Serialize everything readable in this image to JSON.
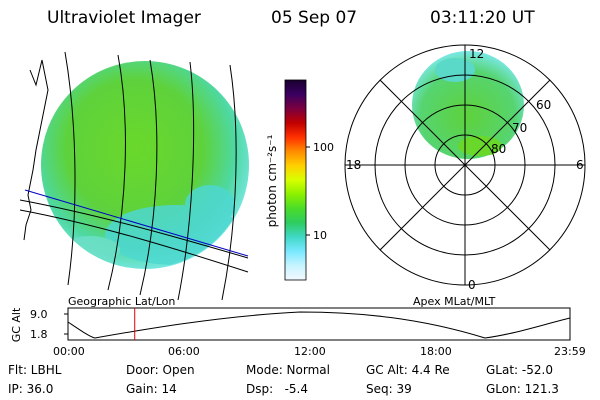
{
  "header": {
    "instrument": "Ultraviolet Imager",
    "date": "05 Sep 07",
    "time": "03:11:20 UT"
  },
  "colorbar": {
    "unit_label": "photon cm⁻²s⁻¹",
    "ticks": [
      "100",
      "10"
    ],
    "stops": [
      "#1a0030",
      "#3a0060",
      "#7a0040",
      "#c00000",
      "#ff3000",
      "#ff8c00",
      "#ffd000",
      "#d8ff00",
      "#8cf000",
      "#4adc2a",
      "#2ecc60",
      "#40d8c8",
      "#7ae8ff",
      "#c8f4ff",
      "#f4f8ff"
    ]
  },
  "left_panel": {
    "title": "Geographic Lat/Lon"
  },
  "right_panel": {
    "title": "Apex MLat/MLT",
    "mlt_labels": {
      "top": "12",
      "left": "18",
      "right": "6",
      "bottom": "0"
    },
    "lat_labels": [
      "60",
      "70",
      "80"
    ]
  },
  "altitude_plot": {
    "ylabel": "GC Alt",
    "yticks": [
      "9.0",
      "1.8"
    ],
    "xticks": [
      "00:00",
      "06:00",
      "12:00",
      "18:00",
      "23:59"
    ],
    "current_hours": 3.19,
    "marker_color": "#e00000"
  },
  "info": {
    "flt": "Flt: LBHL",
    "ip": "IP: 36.0",
    "door": "Door: Open",
    "gain": "Gain: 14",
    "mode": "Mode: Normal",
    "dsp": "Dsp:   -5.4",
    "gcalt": "GC Alt: 4.4 Re",
    "seq": "Seq: 39",
    "glat": "GLat: -52.0",
    "glon": "GLon: 121.3"
  }
}
